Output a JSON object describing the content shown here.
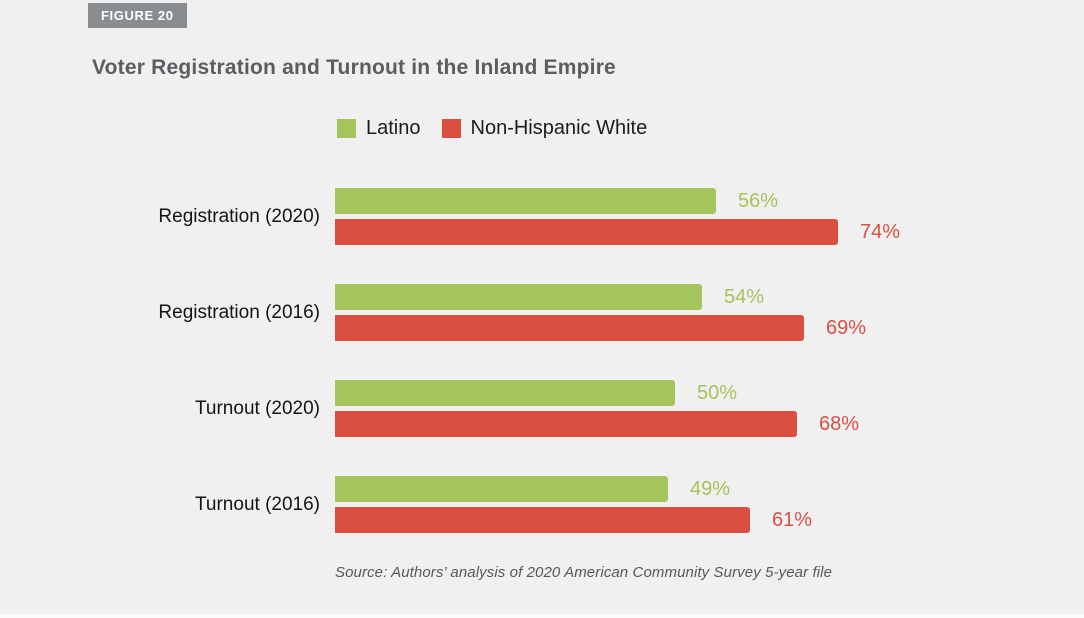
{
  "figure": {
    "badge": "FIGURE 20",
    "title": "Voter Registration and Turnout in the Inland Empire",
    "source": "Source: Authors’ analysis of 2020 American Community Survey 5-year file"
  },
  "colors": {
    "latino_green": "#a4c45c",
    "white_red": "#d95043",
    "badge_bg": "#8a8d8f",
    "title_text": "#5a5e61",
    "category_text": "#141414",
    "source_text": "#55585a",
    "background": "#f0f0f1"
  },
  "chart_data": {
    "type": "bar",
    "orientation": "horizontal",
    "title": "Voter Registration and Turnout in the Inland Empire",
    "categories": [
      "Registration (2020)",
      "Registration (2016)",
      "Turnout (2020)",
      "Turnout (2016)"
    ],
    "series": [
      {
        "name": "Latino",
        "color": "#a4c45c",
        "values": [
          56,
          54,
          50,
          49
        ]
      },
      {
        "name": "Non-Hispanic White",
        "color": "#d95043",
        "values": [
          74,
          69,
          68,
          61
        ]
      }
    ],
    "value_suffix": "%",
    "value_labels": [
      [
        "56%",
        "54%",
        "50%",
        "49%"
      ],
      [
        "74%",
        "69%",
        "68%",
        "61%"
      ]
    ],
    "xlim": [
      0,
      100
    ],
    "grid": false,
    "legend_position": "top-center",
    "value_label_style": "colored-to-match-series"
  }
}
